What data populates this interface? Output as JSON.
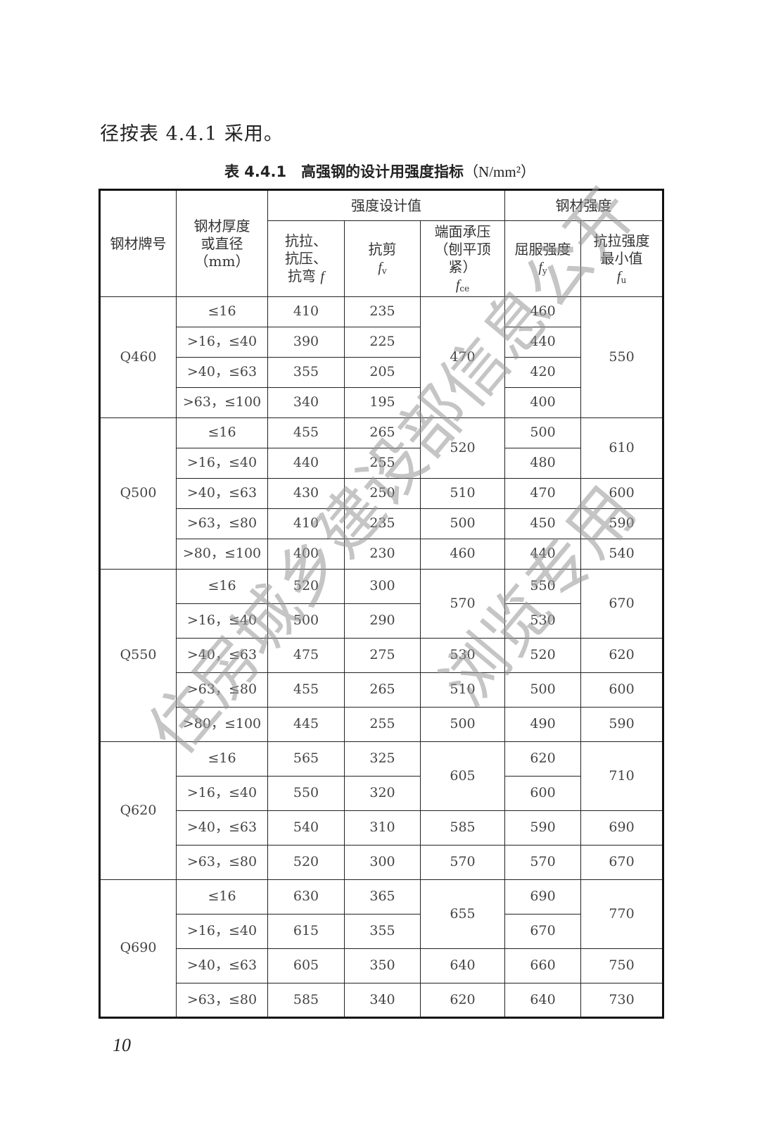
{
  "intro_text": "径按表 4.4.1 采用。",
  "caption": {
    "title": "表 4.4.1　高强钢的设计用强度指标",
    "unit": "（N/mm²）"
  },
  "headers": {
    "grade": "钢材牌号",
    "thickness": [
      "钢材厚度",
      "或直径",
      "（mm）"
    ],
    "design_group": "强度设计值",
    "material_group": "钢材强度",
    "f": [
      "抗拉、",
      "抗压、",
      "抗弯 "
    ],
    "f_sym": "f",
    "fv": "抗剪",
    "fv_sym": "f",
    "fv_sub": "v",
    "fce": [
      "端面承压",
      "（刨平顶紧）"
    ],
    "fce_sym": "f",
    "fce_sub": "ce",
    "fy": "屈服强度",
    "fy_sym": "f",
    "fy_sub": "y",
    "fu": [
      "抗拉强度",
      "最小值"
    ],
    "fu_sym": "f",
    "fu_sub": "u"
  },
  "groups": [
    {
      "grade": "Q460",
      "fce_spans": [
        [
          470,
          4
        ]
      ],
      "fu_spans": [
        [
          550,
          4
        ]
      ],
      "rows": [
        {
          "t": "≤16",
          "f": "410",
          "fv": "235",
          "fy": "460"
        },
        {
          "t": ">16，≤40",
          "f": "390",
          "fv": "225",
          "fy": "440"
        },
        {
          "t": ">40，≤63",
          "f": "355",
          "fv": "205",
          "fy": "420"
        },
        {
          "t": ">63，≤100",
          "f": "340",
          "fv": "195",
          "fy": "400"
        }
      ]
    },
    {
      "grade": "Q500",
      "fce_spans": [
        [
          520,
          2
        ],
        [
          510,
          1
        ],
        [
          500,
          1
        ],
        [
          460,
          1
        ]
      ],
      "fu_spans": [
        [
          610,
          2
        ],
        [
          600,
          1
        ],
        [
          590,
          1
        ],
        [
          540,
          1
        ]
      ],
      "rows": [
        {
          "t": "≤16",
          "f": "455",
          "fv": "265",
          "fy": "500"
        },
        {
          "t": ">16，≤40",
          "f": "440",
          "fv": "255",
          "fy": "480"
        },
        {
          "t": ">40，≤63",
          "f": "430",
          "fv": "250",
          "fy": "470"
        },
        {
          "t": ">63，≤80",
          "f": "410",
          "fv": "235",
          "fy": "450"
        },
        {
          "t": ">80，≤100",
          "f": "400",
          "fv": "230",
          "fy": "440"
        }
      ]
    },
    {
      "grade": "Q550",
      "fce_spans": [
        [
          570,
          2
        ],
        [
          530,
          1
        ],
        [
          510,
          1
        ],
        [
          500,
          1
        ]
      ],
      "fu_spans": [
        [
          670,
          2
        ],
        [
          620,
          1
        ],
        [
          600,
          1
        ],
        [
          590,
          1
        ]
      ],
      "rows": [
        {
          "t": "≤16",
          "f": "520",
          "fv": "300",
          "fy": "550"
        },
        {
          "t": ">16，≤40",
          "f": "500",
          "fv": "290",
          "fy": "530"
        },
        {
          "t": ">40，≤63",
          "f": "475",
          "fv": "275",
          "fy": "520"
        },
        {
          "t": ">63，≤80",
          "f": "455",
          "fv": "265",
          "fy": "500"
        },
        {
          "t": ">80，≤100",
          "f": "445",
          "fv": "255",
          "fy": "490"
        }
      ]
    },
    {
      "grade": "Q620",
      "fce_spans": [
        [
          605,
          2
        ],
        [
          585,
          1
        ],
        [
          570,
          1
        ]
      ],
      "fu_spans": [
        [
          710,
          2
        ],
        [
          690,
          1
        ],
        [
          670,
          1
        ]
      ],
      "rows": [
        {
          "t": "≤16",
          "f": "565",
          "fv": "325",
          "fy": "620"
        },
        {
          "t": ">16，≤40",
          "f": "550",
          "fv": "320",
          "fy": "600"
        },
        {
          "t": ">40，≤63",
          "f": "540",
          "fv": "310",
          "fy": "590"
        },
        {
          "t": ">63，≤80",
          "f": "520",
          "fv": "300",
          "fy": "570"
        }
      ]
    },
    {
      "grade": "Q690",
      "fce_spans": [
        [
          655,
          2
        ],
        [
          640,
          1
        ],
        [
          620,
          1
        ]
      ],
      "fu_spans": [
        [
          770,
          2
        ],
        [
          750,
          1
        ],
        [
          730,
          1
        ]
      ],
      "rows": [
        {
          "t": "≤16",
          "f": "630",
          "fv": "365",
          "fy": "690"
        },
        {
          "t": ">16，≤40",
          "f": "615",
          "fv": "355",
          "fy": "670"
        },
        {
          "t": ">40，≤63",
          "f": "605",
          "fv": "350",
          "fy": "660"
        },
        {
          "t": ">63，≤80",
          "f": "585",
          "fv": "340",
          "fy": "640"
        }
      ]
    }
  ],
  "page_number": "10",
  "watermark": [
    "住房城乡建设部信息公开",
    "浏览专用"
  ]
}
